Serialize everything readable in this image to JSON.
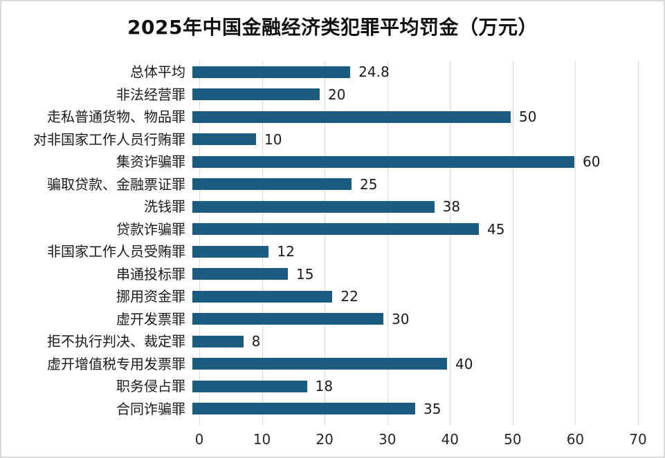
{
  "chart_data": {
    "type": "bar",
    "orientation": "horizontal",
    "title": "2025年中国金融经济类犯罪平均罚金（万元）",
    "categories": [
      "总体平均",
      "非法经营罪",
      "走私普通货物、物品罪",
      "对非国家工作人员行贿罪",
      "集资诈骗罪",
      "骗取贷款、金融票证罪",
      "洗钱罪",
      "贷款诈骗罪",
      "非国家工作人员受贿罪",
      "串通投标罪",
      "挪用资金罪",
      "虚开发票罪",
      "拒不执行判决、裁定罪",
      "虚开增值税专用发票罪",
      "职务侵占罪",
      "合同诈骗罪"
    ],
    "values": [
      24.8,
      20,
      50,
      10,
      60,
      25,
      38,
      45,
      12,
      15,
      22,
      30,
      8,
      40,
      18,
      35
    ],
    "value_labels": [
      "24.8",
      "20",
      "50",
      "10",
      "60",
      "25",
      "38",
      "45",
      "12",
      "15",
      "22",
      "30",
      "8",
      "40",
      "18",
      "35"
    ],
    "xlabel": "",
    "ylabel": "",
    "xlim": [
      0,
      70
    ],
    "x_ticks": [
      0,
      10,
      20,
      30,
      40,
      50,
      60,
      70
    ],
    "grid": "vertical",
    "legend": "none",
    "colors": {
      "bar": "#1b5c80",
      "gridline": "#d9d9d9",
      "border": "#d9d9d9",
      "text": "#1a1a1a",
      "background": "#ffffff"
    }
  }
}
